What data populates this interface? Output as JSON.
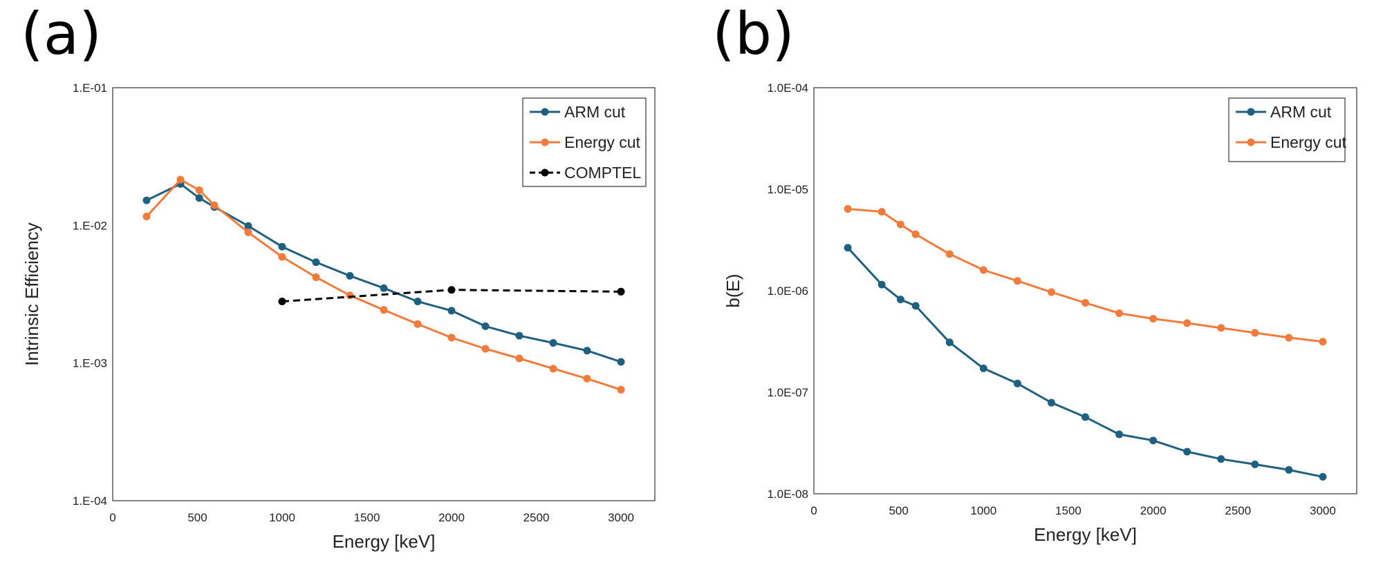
{
  "chart_data": [
    {
      "panel": "(a)",
      "type": "line",
      "title": "",
      "xlabel": "Energy [keV]",
      "ylabel": "Intrinsic Efficiency",
      "xscale": "linear",
      "yscale": "log",
      "xlim": [
        0,
        3200
      ],
      "ylim": [
        0.0001,
        0.1
      ],
      "xticks": [
        0,
        500,
        1000,
        1500,
        2000,
        2500,
        3000
      ],
      "xtick_labels": [
        "0",
        "500",
        "1000",
        "1500",
        "2000",
        "2500",
        "3000"
      ],
      "yticks": [
        0.1,
        0.01,
        0.001,
        0.0001
      ],
      "ytick_labels": [
        "1.E-01",
        "1.E-02",
        "1.E-03",
        "1.E-04"
      ],
      "legend_position": "top-right",
      "grid": false,
      "series": [
        {
          "name": "ARM cut",
          "color": "#1f5f7f",
          "dash": "solid",
          "x": [
            200,
            400,
            511,
            600,
            800,
            1000,
            1200,
            1400,
            1600,
            1800,
            2000,
            2200,
            2400,
            2600,
            2800,
            3000
          ],
          "y": [
            0.0152,
            0.02,
            0.0158,
            0.0136,
            0.0099,
            0.007,
            0.0054,
            0.0043,
            0.0035,
            0.0028,
            0.0024,
            0.00185,
            0.00158,
            0.0014,
            0.00123,
            0.00102
          ]
        },
        {
          "name": "Energy cut",
          "color": "#f07b3c",
          "dash": "solid",
          "x": [
            200,
            400,
            511,
            600,
            800,
            1000,
            1200,
            1400,
            1600,
            1800,
            2000,
            2200,
            2400,
            2600,
            2800,
            3000
          ],
          "y": [
            0.0116,
            0.0215,
            0.018,
            0.014,
            0.0089,
            0.0059,
            0.0042,
            0.0031,
            0.00243,
            0.00192,
            0.00153,
            0.00127,
            0.00108,
            0.00091,
            0.00077,
            0.00064
          ]
        },
        {
          "name": "COMPTEL",
          "color": "#000000",
          "dash": "dashed",
          "x": [
            1000,
            2000,
            3000
          ],
          "y": [
            0.0028,
            0.0034,
            0.0033
          ]
        }
      ]
    },
    {
      "panel": "(b)",
      "type": "line",
      "title": "",
      "xlabel": "Energy [keV]",
      "ylabel": "b(E)",
      "xscale": "linear",
      "yscale": "log",
      "xlim": [
        0,
        3200
      ],
      "ylim": [
        1e-08,
        0.0001
      ],
      "xticks": [
        0,
        500,
        1000,
        1500,
        2000,
        2500,
        3000
      ],
      "xtick_labels": [
        "0",
        "500",
        "1000",
        "1500",
        "2000",
        "2500",
        "3000"
      ],
      "yticks": [
        0.0001,
        1e-05,
        1e-06,
        1e-07,
        1e-08
      ],
      "ytick_labels": [
        "1.0E-04",
        "1.0E-05",
        "1.0E-06",
        "1.0E-07",
        "1.0E-08"
      ],
      "legend_position": "top-right",
      "grid": false,
      "series": [
        {
          "name": "ARM cut",
          "color": "#1f5f7f",
          "dash": "solid",
          "x": [
            200,
            400,
            511,
            600,
            800,
            1000,
            1200,
            1400,
            1600,
            1800,
            2000,
            2200,
            2400,
            2600,
            2800,
            3000
          ],
          "y": [
            2.65e-06,
            1.15e-06,
            8.2e-07,
            7.1e-07,
            3.1e-07,
            1.72e-07,
            1.22e-07,
            7.9e-08,
            5.7e-08,
            3.85e-08,
            3.35e-08,
            2.6e-08,
            2.2e-08,
            1.95e-08,
            1.72e-08,
            1.47e-08
          ]
        },
        {
          "name": "Energy cut",
          "color": "#f07b3c",
          "dash": "solid",
          "x": [
            200,
            400,
            511,
            600,
            800,
            1000,
            1200,
            1400,
            1600,
            1800,
            2000,
            2200,
            2400,
            2600,
            2800,
            3000
          ],
          "y": [
            6.4e-06,
            6e-06,
            4.5e-06,
            3.6e-06,
            2.3e-06,
            1.6e-06,
            1.25e-06,
            9.7e-07,
            7.6e-07,
            6e-07,
            5.3e-07,
            4.8e-07,
            4.3e-07,
            3.85e-07,
            3.45e-07,
            3.15e-07
          ]
        }
      ]
    }
  ]
}
